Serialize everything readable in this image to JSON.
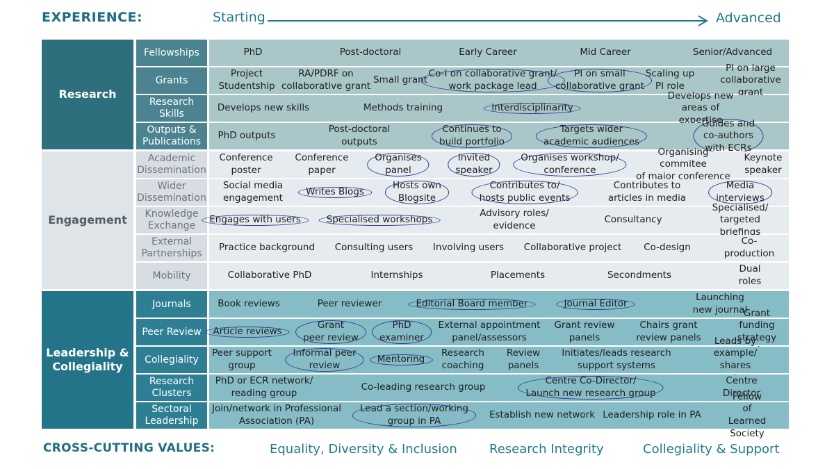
{
  "header": {
    "experience_label": "EXPERIENCE:",
    "start_label": "Starting",
    "end_label": "Advanced",
    "accent_color": "#1f7a8c"
  },
  "sections": [
    {
      "key": "research",
      "label": "Research",
      "rows": [
        {
          "label": "Fellowships",
          "cells": [
            {
              "text": "PhD"
            },
            {
              "text": "Post-doctoral"
            },
            {
              "text": "Early Career"
            },
            {
              "text": "Mid Career"
            },
            {
              "text": "Senior/Advanced"
            }
          ]
        },
        {
          "label": "Grants",
          "cells": [
            {
              "text": "Project\nStudentship"
            },
            {
              "text": "RA/PDRF on\ncollaborative grant"
            },
            {
              "text": "Small grant"
            },
            {
              "text": "Co-I on collaborative grant/\nwork package lead",
              "circled": true
            },
            {
              "text": "PI on small\ncollaborative grant",
              "circled": true
            },
            {
              "text": "Scaling up\nPI role"
            },
            {
              "text": "PI on large\ncollaborative grant"
            }
          ]
        },
        {
          "label": "Research\nSkills",
          "cells": [
            {
              "text": "Develops new skills"
            },
            {
              "text": "Methods training"
            },
            {
              "text": "Interdisciplinarity",
              "circled": true
            },
            {
              "text": "Develops new areas of expertise"
            }
          ]
        },
        {
          "label": "Outputs &\nPublications",
          "cells": [
            {
              "text": "PhD outputs"
            },
            {
              "text": "Post-doctoral\noutputs"
            },
            {
              "text": "Continues to\nbuild portfolio",
              "circled": true
            },
            {
              "text": "Targets wider\nacademic audiences",
              "circled": true
            },
            {
              "text": "Guides and co-authors\nwith ECRs",
              "circled": true
            }
          ]
        }
      ]
    },
    {
      "key": "engagement",
      "label": "Engagement",
      "rows": [
        {
          "label": "Academic\nDissemination",
          "cells": [
            {
              "text": "Conference\nposter"
            },
            {
              "text": "Conference\npaper"
            },
            {
              "text": "Organises\npanel",
              "circled": true
            },
            {
              "text": "Invited\nspeaker",
              "circled": true
            },
            {
              "text": "Organises workshop/\nconference",
              "circled": true
            },
            {
              "text": "Organising commitee\nof major conference"
            },
            {
              "text": "Keynote\nspeaker"
            }
          ]
        },
        {
          "label": "Wider\nDissemination",
          "cells": [
            {
              "text": "Social media\nengagement"
            },
            {
              "text": "Writes Blogs",
              "circled": true
            },
            {
              "text": "Hosts own\nBlogsite",
              "circled": true
            },
            {
              "text": "Contributes to/\nhosts public events",
              "circled": true
            },
            {
              "text": "Contributes to\narticles in media"
            },
            {
              "text": "Media interviews",
              "circled": true
            }
          ]
        },
        {
          "label": "Knowledge\nExchange",
          "cells": [
            {
              "text": "Engages with users",
              "circled": true
            },
            {
              "text": "Specialised workshops",
              "circled": true
            },
            {
              "text": "Advisory roles/\nevidence"
            },
            {
              "text": "Consultancy"
            },
            {
              "text": "Specialised/\ntargeted briefings"
            }
          ]
        },
        {
          "label": "External\nPartnerships",
          "cells": [
            {
              "text": "Practice background"
            },
            {
              "text": "Consulting users"
            },
            {
              "text": "Involving users"
            },
            {
              "text": "Collaborative project"
            },
            {
              "text": "Co-design"
            },
            {
              "text": "Co-production"
            }
          ]
        },
        {
          "label": "Mobility",
          "cells": [
            {
              "text": "Collaborative PhD"
            },
            {
              "text": "Internships"
            },
            {
              "text": "Placements"
            },
            {
              "text": "Secondments"
            },
            {
              "text": "Dual roles"
            }
          ]
        }
      ]
    },
    {
      "key": "leadership",
      "label": "Leadership &\nCollegiality",
      "rows": [
        {
          "label": "Journals",
          "cells": [
            {
              "text": "Book reviews"
            },
            {
              "text": "Peer reviewer"
            },
            {
              "text": "Editorial Board member",
              "circled": true
            },
            {
              "text": "Journal Editor",
              "circled": true
            },
            {
              "text": "Launching new journal"
            }
          ]
        },
        {
          "label": "Peer Review",
          "cells": [
            {
              "text": "Article reviews",
              "circled": true
            },
            {
              "text": "Grant\npeer review",
              "circled": true
            },
            {
              "text": "PhD\nexaminer",
              "circled": true
            },
            {
              "text": "External appointment\npanel/assessors"
            },
            {
              "text": "Grant review\npanels"
            },
            {
              "text": "Chairs grant\nreview panels"
            },
            {
              "text": "Grant funding\nstrategy role"
            }
          ]
        },
        {
          "label": "Collegiality",
          "cells": [
            {
              "text": "Peer support\ngroup"
            },
            {
              "text": "Informal peer\nreview",
              "circled": true
            },
            {
              "text": "Mentoring",
              "circled": true
            },
            {
              "text": "Research\ncoaching"
            },
            {
              "text": "Review\npanels"
            },
            {
              "text": "Initiates/leads research\nsupport systems"
            },
            {
              "text": "Leads by example/\nshares experiences"
            }
          ]
        },
        {
          "label": "Research\nClusters",
          "cells": [
            {
              "text": "PhD or ECR network/\nreading group"
            },
            {
              "text": "Co-leading research group"
            },
            {
              "text": "Centre Co-Director/\nLaunch new research group",
              "circled": true
            },
            {
              "text": "Centre Director"
            }
          ]
        },
        {
          "label": "Sectoral\nLeadership",
          "cells": [
            {
              "text": "Join/network in Professional\nAssociation (PA)"
            },
            {
              "text": "Lead a section/working\ngroup in PA",
              "circled": true
            },
            {
              "text": "Establish new network"
            },
            {
              "text": "Leadership role in PA"
            },
            {
              "text": "Fellow of\nLearned Society"
            }
          ]
        }
      ]
    }
  ],
  "cross_cutting": {
    "label": "CROSS-CUTTING VALUES:",
    "values": [
      "Equality, Diversity & Inclusion",
      "Research Integrity",
      "Collegiality & Support"
    ]
  }
}
